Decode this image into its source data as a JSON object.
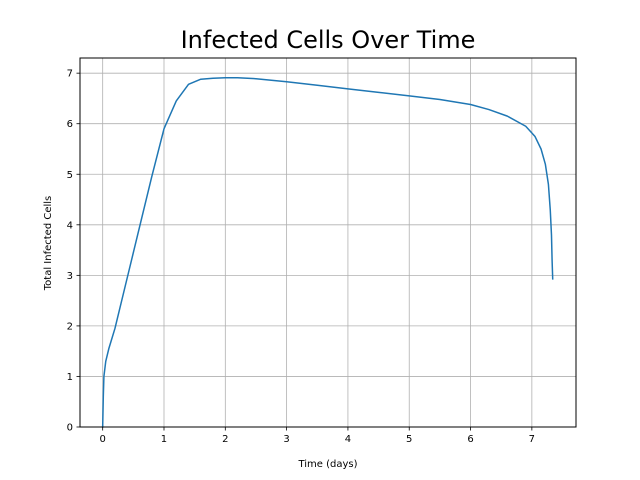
{
  "chart_data": {
    "type": "line",
    "title": "Infected Cells Over Time",
    "xlabel": "Time (days)",
    "ylabel": "Total Infected Cells",
    "xlim": [
      -0.37,
      7.72
    ],
    "ylim": [
      0,
      7.3
    ],
    "xticks": [
      0,
      1,
      2,
      3,
      4,
      5,
      6,
      7
    ],
    "yticks": [
      0,
      1,
      2,
      3,
      4,
      5,
      6,
      7
    ],
    "grid": true,
    "colors": {
      "line": "#1f77b4",
      "grid": "#b0b0b0"
    },
    "series": [
      {
        "x": [
          0.0,
          0.01,
          0.02,
          0.05,
          0.1,
          0.2,
          0.4,
          0.6,
          0.8,
          1.0,
          1.2,
          1.4,
          1.6,
          1.8,
          2.0,
          2.2,
          2.5,
          3.0,
          3.5,
          4.0,
          4.5,
          5.0,
          5.5,
          6.0,
          6.3,
          6.6,
          6.9,
          7.05,
          7.15,
          7.22,
          7.27,
          7.3,
          7.32,
          7.33,
          7.34
        ],
        "y": [
          0.0,
          0.6,
          1.0,
          1.3,
          1.55,
          1.95,
          2.95,
          3.95,
          4.95,
          5.9,
          6.45,
          6.78,
          6.88,
          6.9,
          6.91,
          6.91,
          6.89,
          6.83,
          6.76,
          6.69,
          6.62,
          6.55,
          6.48,
          6.38,
          6.28,
          6.15,
          5.95,
          5.75,
          5.5,
          5.2,
          4.8,
          4.3,
          3.8,
          3.3,
          2.93
        ]
      }
    ]
  }
}
